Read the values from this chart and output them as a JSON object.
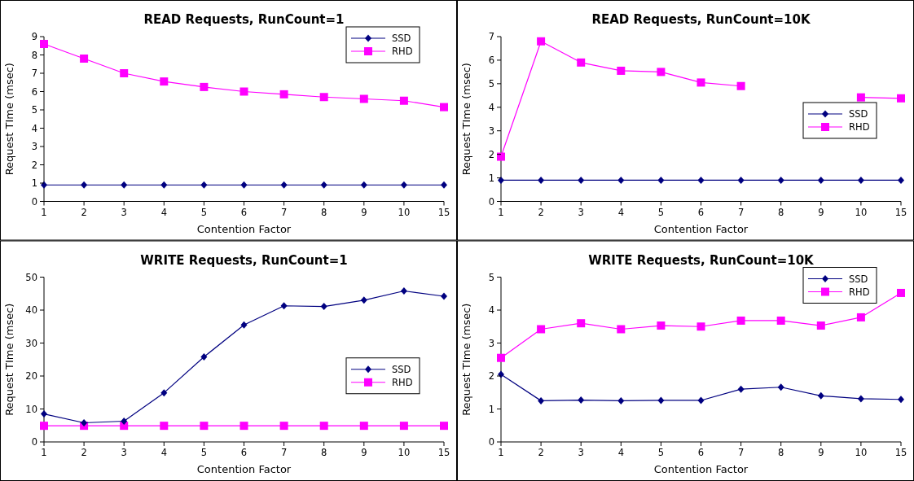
{
  "chart_data": [
    {
      "type": "line",
      "title": "READ Requests, RunCount=1",
      "xlabel": "Contention Factor",
      "ylabel": "Request TIme (msec)",
      "categories": [
        "1",
        "2",
        "3",
        "4",
        "5",
        "6",
        "7",
        "8",
        "9",
        "10",
        "15"
      ],
      "ylim": [
        0,
        9
      ],
      "yticks": [
        0,
        1,
        2,
        3,
        4,
        5,
        6,
        7,
        8,
        9
      ],
      "legend": "top right",
      "series": [
        {
          "name": "SSD",
          "color": "#000080",
          "marker": "diamond",
          "values": [
            0.9,
            0.9,
            0.9,
            0.9,
            0.9,
            0.9,
            0.9,
            0.9,
            0.9,
            0.9,
            0.9
          ]
        },
        {
          "name": "RHD",
          "color": "#ff00ff",
          "marker": "square",
          "values": [
            8.6,
            7.8,
            7.0,
            6.55,
            6.25,
            6.0,
            5.85,
            5.7,
            5.6,
            5.5,
            5.15
          ]
        }
      ]
    },
    {
      "type": "line",
      "title": "READ Requests, RunCount=10K",
      "xlabel": "Contention Factor",
      "ylabel": "Request TIme (msec)",
      "categories": [
        "1",
        "2",
        "3",
        "4",
        "5",
        "6",
        "7",
        "8",
        "9",
        "10",
        "15"
      ],
      "ylim": [
        0,
        7
      ],
      "yticks": [
        0,
        1,
        2,
        3,
        4,
        5,
        6,
        7
      ],
      "legend": "right",
      "series": [
        {
          "name": "SSD",
          "color": "#000080",
          "marker": "diamond",
          "values": [
            0.9,
            0.9,
            0.9,
            0.9,
            0.9,
            0.9,
            0.9,
            0.9,
            0.9,
            0.9,
            0.9
          ]
        },
        {
          "name": "RHD",
          "color": "#ff00ff",
          "marker": "square",
          "values": [
            1.9,
            6.8,
            5.9,
            5.55,
            5.5,
            5.05,
            4.9,
            null,
            null,
            4.42,
            4.38
          ]
        }
      ]
    },
    {
      "type": "line",
      "title": "WRITE Requests, RunCount=1",
      "xlabel": "Contention Factor",
      "ylabel": "Request TIme (msec)",
      "categories": [
        "1",
        "2",
        "3",
        "4",
        "5",
        "6",
        "7",
        "8",
        "9",
        "10",
        "15"
      ],
      "ylim": [
        0,
        50
      ],
      "yticks": [
        0,
        10,
        20,
        30,
        40,
        50
      ],
      "legend": "center right",
      "series": [
        {
          "name": "SSD",
          "color": "#000080",
          "marker": "diamond",
          "values": [
            8.5,
            5.8,
            6.3,
            14.9,
            25.8,
            35.5,
            41.3,
            41.1,
            43.0,
            45.8,
            44.2
          ]
        },
        {
          "name": "RHD",
          "color": "#ff00ff",
          "marker": "square",
          "values": [
            4.9,
            4.9,
            4.9,
            4.9,
            4.9,
            4.9,
            4.9,
            4.9,
            4.9,
            4.9,
            4.9
          ]
        }
      ]
    },
    {
      "type": "line",
      "title": "WRITE Requests, RunCount=10K",
      "xlabel": "Contention Factor",
      "ylabel": "Request TIme (msec)",
      "categories": [
        "1",
        "2",
        "3",
        "4",
        "5",
        "6",
        "7",
        "8",
        "9",
        "10",
        "15"
      ],
      "ylim": [
        0,
        5
      ],
      "yticks": [
        0,
        1,
        2,
        3,
        4,
        5
      ],
      "legend": "top right",
      "series": [
        {
          "name": "SSD",
          "color": "#000080",
          "marker": "diamond",
          "values": [
            2.05,
            1.25,
            1.27,
            1.25,
            1.26,
            1.26,
            1.6,
            1.66,
            1.4,
            1.31,
            1.29
          ]
        },
        {
          "name": "RHD",
          "color": "#ff00ff",
          "marker": "square",
          "values": [
            2.55,
            3.42,
            3.6,
            3.42,
            3.53,
            3.5,
            3.68,
            3.68,
            3.53,
            3.78,
            4.52
          ]
        }
      ]
    }
  ]
}
